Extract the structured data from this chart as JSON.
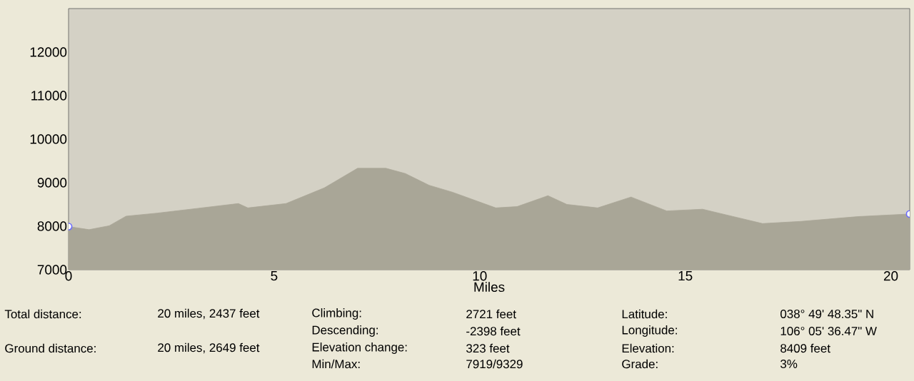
{
  "chart_data": {
    "type": "area",
    "xlabel": "Miles",
    "xlim": [
      0,
      20.46
    ],
    "ylim": [
      7000,
      13000
    ],
    "xticks": [
      0,
      5,
      10,
      15,
      20
    ],
    "yticks": [
      7000,
      8000,
      9000,
      10000,
      11000,
      12000
    ],
    "series": [
      {
        "color": "#a9a697",
        "x": [
          0,
          0.5,
          0.99,
          1.4,
          2.16,
          2.97,
          4.13,
          4.36,
          5.29,
          6.22,
          7.03,
          7.72,
          8.19,
          8.77,
          9.34,
          10.39,
          10.91,
          11.66,
          12.12,
          12.87,
          13.68,
          14.55,
          15.42,
          16.88,
          17.81,
          19.2,
          20.46
        ],
        "values": [
          7990,
          7920,
          8010,
          8230,
          8300,
          8390,
          8520,
          8420,
          8520,
          8880,
          9330,
          9330,
          9210,
          8940,
          8780,
          8420,
          8450,
          8700,
          8500,
          8420,
          8670,
          8350,
          8390,
          8060,
          8110,
          8220,
          8280
        ]
      },
      {
        "type": "scatter",
        "marker": "circle",
        "color": "#6b6bff",
        "x": [
          0,
          20.46
        ],
        "values": [
          7990,
          8280
        ]
      }
    ],
    "annotations": [
      "Total distance:",
      "20 miles, 2437 feet",
      "Climbing:",
      "2721 feet",
      "Latitude:",
      "038° 49' 48.35\" N",
      "Descending:",
      "-2398 feet",
      "Longitude:",
      "106° 05' 36.47\" W",
      "Ground distance:",
      "20 miles, 2649 feet",
      "Elevation change:",
      "323 feet",
      "Elevation:",
      "8409 feet",
      "Min/Max:",
      "7919/9329",
      "Grade:",
      "3%"
    ]
  }
}
